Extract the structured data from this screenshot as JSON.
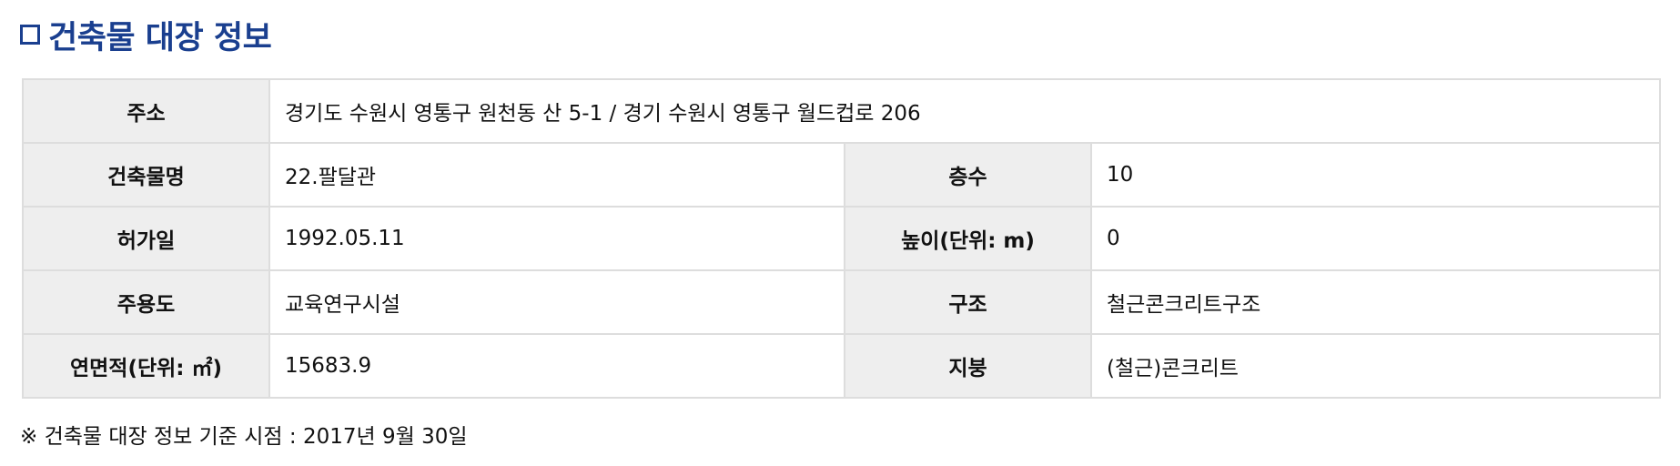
{
  "section": {
    "title": "건축물 대장 정보"
  },
  "building": {
    "address_label": "주소",
    "address_value": "경기도 수원시 영통구 원천동 산 5-1 / 경기 수원시 영통구 월드컵로 206",
    "name_label": "건축물명",
    "name_value": "22.팔달관",
    "floors_label": "층수",
    "floors_value": "10",
    "permit_date_label": "허가일",
    "permit_date_value": "1992.05.11",
    "height_label": "높이(단위: m)",
    "height_value": "0",
    "usage_label": "주용도",
    "usage_value": "교육연구시설",
    "structure_label": "구조",
    "structure_value": "철근콘크리트구조",
    "floor_area_label": "연면적(단위: ㎡)",
    "floor_area_value": "15683.9",
    "roof_label": "지붕",
    "roof_value": "(철근)콘크리트"
  },
  "footnote": "※ 건축물 대장 정보 기준 시점 : 2017년 9월 30일",
  "colors": {
    "title": "#1a3f8f",
    "header_cell_bg": "#eeeeee",
    "border": "#dddddd"
  }
}
